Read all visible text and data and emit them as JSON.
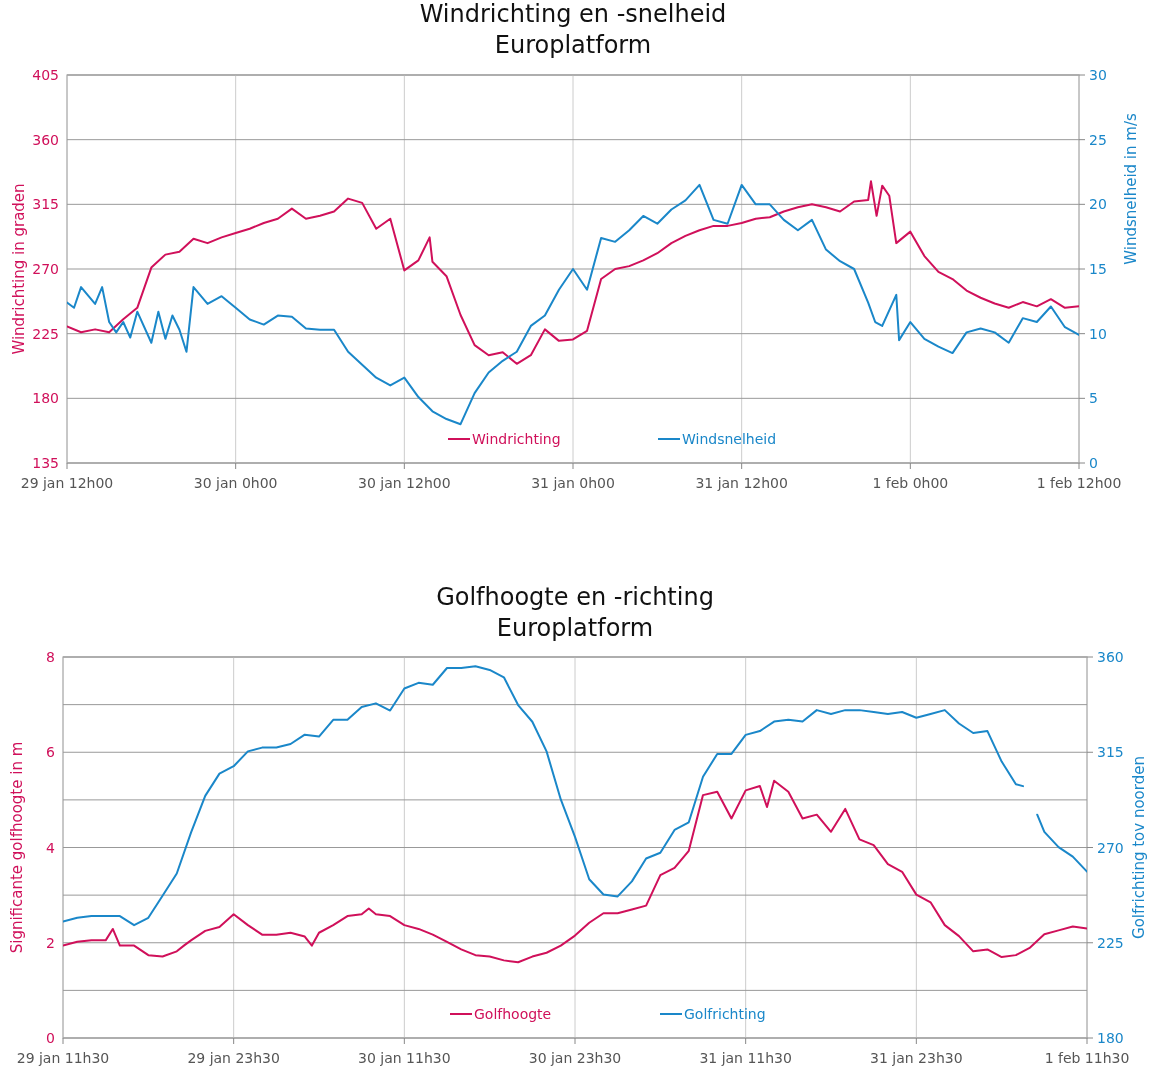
{
  "chart_data": [
    {
      "type": "line",
      "title": "Windrichting en -snelheid",
      "subtitle": "Europlatform",
      "ylabel": "Windrichting in graden",
      "y2label": "Windsnelheid in m/s",
      "xlim": [
        "--01-29T12:00",
        "--02-01T12:00"
      ],
      "xticks": [
        {
          "value": "--01-29T12:00",
          "label": "29 jan 12h00"
        },
        {
          "value": "--01-30T00:00",
          "label": "30 jan 0h00"
        },
        {
          "value": "--01-30T12:00",
          "label": "30 jan 12h00"
        },
        {
          "value": "--01-31T00:00",
          "label": "31 jan 0h00"
        },
        {
          "value": "--01-31T12:00",
          "label": "31 jan 12h00"
        },
        {
          "value": "--02-01T00:00",
          "label": "1 feb 0h00"
        },
        {
          "value": "--02-01T12:00",
          "label": "1 feb 12h00"
        }
      ],
      "ylim": [
        135,
        405
      ],
      "yticks": [
        135,
        180,
        225,
        270,
        315,
        360,
        405
      ],
      "y2lim": [
        0,
        30
      ],
      "y2ticks": [
        0,
        5,
        10,
        15,
        20,
        25,
        30
      ],
      "grid": true,
      "legend": "bottom",
      "line_style": "solid",
      "series": [
        {
          "name": "Windrichting",
          "color": "#d0105a",
          "x": [
            "--01-29T12:00",
            "--01-29T13:00",
            "--01-29T14:00",
            "--01-29T15:00",
            "--01-29T16:00",
            "--01-29T17:00",
            "--01-29T18:00",
            "--01-29T19:00",
            "--01-29T20:00",
            "--01-29T21:00",
            "--01-29T22:00",
            "--01-29T23:00",
            "--01-30T00:00",
            "--01-30T01:00",
            "--01-30T02:00",
            "--01-30T03:00",
            "--01-30T04:00",
            "--01-30T05:00",
            "--01-30T06:00",
            "--01-30T07:00",
            "--01-30T08:00",
            "--01-30T09:00",
            "--01-30T10:00",
            "--01-30T11:00",
            "--01-30T12:00",
            "--01-30T13:00",
            "--01-30T13:48",
            "--01-30T14:00",
            "--01-30T15:00",
            "--01-30T16:00",
            "--01-30T17:00",
            "--01-30T18:00",
            "--01-30T19:00",
            "--01-30T20:00",
            "--01-30T21:00",
            "--01-30T22:00",
            "--01-30T23:00",
            "--01-31T00:00",
            "--01-31T01:00",
            "--01-31T02:00",
            "--01-31T03:00",
            "--01-31T04:00",
            "--01-31T05:00",
            "--01-31T06:00",
            "--01-31T07:00",
            "--01-31T08:00",
            "--01-31T09:00",
            "--01-31T10:00",
            "--01-31T11:00",
            "--01-31T12:00",
            "--01-31T13:00",
            "--01-31T14:00",
            "--01-31T15:00",
            "--01-31T16:00",
            "--01-31T17:00",
            "--01-31T18:00",
            "--01-31T19:00",
            "--01-31T20:00",
            "--01-31T21:00",
            "--01-31T21:12",
            "--01-31T21:36",
            "--01-31T22:00",
            "--01-31T22:30",
            "--01-31T23:00",
            "--02-01T00:00",
            "--02-01T01:00",
            "--02-01T02:00",
            "--02-01T03:00",
            "--02-01T04:00",
            "--02-01T05:00",
            "--02-01T06:00",
            "--02-01T07:00",
            "--02-01T08:00",
            "--02-01T09:00",
            "--02-01T10:00",
            "--02-01T11:00",
            "--02-01T12:00"
          ],
          "values": [
            230,
            226,
            228,
            226,
            235,
            243,
            271,
            280,
            282,
            291,
            288,
            292,
            295,
            298,
            302,
            305,
            312,
            305,
            307,
            310,
            319,
            316,
            298,
            305,
            269,
            276,
            292,
            275,
            265,
            238,
            217,
            210,
            212,
            204,
            210,
            228,
            220,
            221,
            227,
            263,
            270,
            272,
            276,
            281,
            288,
            293,
            297,
            300,
            300,
            302,
            305,
            306,
            310,
            313,
            315,
            313,
            310,
            317,
            318,
            331,
            307,
            328,
            321,
            288,
            296,
            279,
            268,
            263,
            255,
            250,
            246,
            243,
            247,
            244,
            249,
            243,
            244
          ]
        },
        {
          "name": "Windsnelheid",
          "color": "#1a87c9",
          "axis": "y2",
          "x": [
            "--01-29T12:00",
            "--01-29T12:30",
            "--01-29T13:00",
            "--01-29T14:00",
            "--01-29T14:30",
            "--01-29T15:00",
            "--01-29T15:30",
            "--01-29T16:00",
            "--01-29T16:30",
            "--01-29T17:00",
            "--01-29T18:00",
            "--01-29T18:30",
            "--01-29T19:00",
            "--01-29T19:30",
            "--01-29T20:00",
            "--01-29T20:30",
            "--01-29T21:00",
            "--01-29T22:00",
            "--01-29T23:00",
            "--01-30T00:00",
            "--01-30T01:00",
            "--01-30T02:00",
            "--01-30T03:00",
            "--01-30T04:00",
            "--01-30T05:00",
            "--01-30T06:00",
            "--01-30T07:00",
            "--01-30T08:00",
            "--01-30T09:00",
            "--01-30T10:00",
            "--01-30T11:00",
            "--01-30T12:00",
            "--01-30T13:00",
            "--01-30T14:00",
            "--01-30T15:00",
            "--01-30T16:00",
            "--01-30T17:00",
            "--01-30T18:00",
            "--01-30T19:00",
            "--01-30T20:00",
            "--01-30T21:00",
            "--01-30T22:00",
            "--01-30T23:00",
            "--01-31T00:00",
            "--01-31T01:00",
            "--01-31T02:00",
            "--01-31T03:00",
            "--01-31T04:00",
            "--01-31T05:00",
            "--01-31T06:00",
            "--01-31T07:00",
            "--01-31T08:00",
            "--01-31T09:00",
            "--01-31T10:00",
            "--01-31T11:00",
            "--01-31T12:00",
            "--01-31T13:00",
            "--01-31T14:00",
            "--01-31T15:00",
            "--01-31T16:00",
            "--01-31T17:00",
            "--01-31T18:00",
            "--01-31T19:00",
            "--01-31T20:00",
            "--01-31T21:00",
            "--01-31T21:30",
            "--01-31T22:00",
            "--01-31T23:00",
            "--01-31T23:12",
            "--02-01T00:00",
            "--02-01T01:00",
            "--02-01T02:00",
            "--02-01T03:00",
            "--02-01T04:00",
            "--02-01T05:00",
            "--02-01T06:00",
            "--02-01T07:00",
            "--02-01T08:00",
            "--02-01T09:00",
            "--02-01T10:00",
            "--02-01T11:00",
            "--02-01T12:00"
          ],
          "values": [
            12.4,
            12.0,
            13.6,
            12.3,
            13.6,
            10.9,
            10.1,
            10.9,
            9.7,
            11.7,
            9.3,
            11.7,
            9.6,
            11.4,
            10.3,
            8.6,
            13.6,
            12.3,
            12.9,
            12.0,
            11.1,
            10.7,
            11.4,
            11.3,
            10.4,
            10.3,
            10.3,
            8.6,
            7.6,
            6.6,
            6.0,
            6.6,
            5.1,
            4.0,
            3.4,
            3.0,
            5.4,
            7.0,
            7.9,
            8.6,
            10.6,
            11.4,
            13.4,
            15.0,
            13.4,
            17.4,
            17.1,
            18.0,
            19.1,
            18.5,
            19.6,
            20.3,
            21.5,
            18.8,
            18.5,
            21.5,
            20.0,
            20.0,
            18.8,
            18.0,
            18.8,
            16.5,
            15.6,
            15.0,
            12.4,
            10.9,
            10.6,
            13.0,
            9.5,
            10.9,
            9.6,
            9.0,
            8.5,
            10.1,
            10.4,
            10.1,
            9.3,
            11.2,
            10.9,
            12.1,
            10.5,
            9.9
          ]
        }
      ]
    },
    {
      "type": "line",
      "title": "Golfhoogte en -richting",
      "subtitle": "Europlatform",
      "ylabel": "Significante golfhoogte in m",
      "y2label": "Golfrichting tov noorden",
      "xlim": [
        "--01-29T11:30",
        "--02-01T11:30"
      ],
      "xticks": [
        {
          "value": "--01-29T11:30",
          "label": "29 jan 11h30"
        },
        {
          "value": "--01-29T23:30",
          "label": "29 jan 23h30"
        },
        {
          "value": "--01-30T11:30",
          "label": "30 jan 11h30"
        },
        {
          "value": "--01-30T23:30",
          "label": "30 jan 23h30"
        },
        {
          "value": "--01-31T11:30",
          "label": "31 jan 11h30"
        },
        {
          "value": "--01-31T23:30",
          "label": "31 jan 23h30"
        },
        {
          "value": "--02-01T11:30",
          "label": "1 feb 11h30"
        }
      ],
      "ylim": [
        0,
        8
      ],
      "yticks": [
        0,
        {
          "value": 1,
          "label": null
        },
        2,
        {
          "value": 3,
          "label": null
        },
        4,
        {
          "value": 5,
          "label": null
        },
        6,
        {
          "value": 7,
          "label": null
        },
        8
      ],
      "y2lim": [
        180,
        360
      ],
      "y2ticks": [
        180,
        225,
        270,
        315,
        360
      ],
      "grid": true,
      "legend": "bottom",
      "line_style": "solid",
      "series": [
        {
          "name": "Golfhoogte",
          "color": "#d0105a",
          "x": [
            "--01-29T11:30",
            "--01-29T12:30",
            "--01-29T13:30",
            "--01-29T14:30",
            "--01-29T15:00",
            "--01-29T15:30",
            "--01-29T16:30",
            "--01-29T17:30",
            "--01-29T18:30",
            "--01-29T19:30",
            "--01-29T20:00",
            "--01-29T20:30",
            "--01-29T21:30",
            "--01-29T22:30",
            "--01-29T23:30",
            "--01-30T00:30",
            "--01-30T01:30",
            "--01-30T02:30",
            "--01-30T03:30",
            "--01-30T04:30",
            "--01-30T05:00",
            "--01-30T05:30",
            "--01-30T06:30",
            "--01-30T07:30",
            "--01-30T08:30",
            "--01-30T09:00",
            "--01-30T09:30",
            "--01-30T10:30",
            "--01-30T11:30",
            "--01-30T12:30",
            "--01-30T13:30",
            "--01-30T14:30",
            "--01-30T15:30",
            "--01-30T16:30",
            "--01-30T17:30",
            "--01-30T18:30",
            "--01-30T19:30",
            "--01-30T20:30",
            "--01-30T21:30",
            "--01-30T22:30",
            "--01-30T23:30",
            "--01-31T00:30",
            "--01-31T01:30",
            "--01-31T02:30",
            "--01-31T03:30",
            "--01-31T04:30",
            "--01-31T05:30",
            "--01-31T06:30",
            "--01-31T07:30",
            "--01-31T08:30",
            "--01-31T09:30",
            "--01-31T10:30",
            "--01-31T11:30",
            "--01-31T12:30",
            "--01-31T13:00",
            "--01-31T13:30",
            "--01-31T14:30",
            "--01-31T15:30",
            "--01-31T16:30",
            "--01-31T17:30",
            "--01-31T18:30",
            "--01-31T19:30",
            "--01-31T20:30",
            "--01-31T21:30",
            "--01-31T22:30",
            "--01-31T23:30",
            "--02-01T00:30",
            "--02-01T01:30",
            "--02-01T02:30",
            "--02-01T03:30",
            "--02-01T04:30",
            "--02-01T05:30",
            "--02-01T06:30",
            "--02-01T07:30",
            "--02-01T08:30",
            "--02-01T09:30",
            "--02-01T10:30",
            "--02-01T11:30"
          ],
          "values": [
            1.94,
            2.02,
            2.05,
            2.05,
            2.29,
            1.94,
            1.94,
            1.74,
            1.71,
            1.82,
            1.94,
            2.05,
            2.25,
            2.33,
            2.6,
            2.37,
            2.17,
            2.17,
            2.21,
            2.13,
            1.94,
            2.21,
            2.37,
            2.56,
            2.6,
            2.72,
            2.6,
            2.56,
            2.37,
            2.29,
            2.17,
            2.02,
            1.86,
            1.74,
            1.71,
            1.63,
            1.59,
            1.71,
            1.79,
            1.94,
            2.15,
            2.42,
            2.62,
            2.62,
            2.7,
            2.78,
            3.42,
            3.57,
            3.93,
            5.1,
            5.17,
            4.61,
            5.2,
            5.29,
            4.85,
            5.4,
            5.17,
            4.61,
            4.69,
            4.33,
            4.81,
            4.17,
            4.05,
            3.65,
            3.49,
            3.01,
            2.85,
            2.37,
            2.14,
            1.82,
            1.86,
            1.7,
            1.74,
            1.9,
            2.18,
            2.26,
            2.34,
            2.3
          ]
        },
        {
          "name": "Golfrichting",
          "color": "#1a87c9",
          "axis": "y2",
          "x": [
            "--01-29T11:30",
            "--01-29T12:30",
            "--01-29T13:30",
            "--01-29T14:30",
            "--01-29T15:30",
            "--01-29T16:30",
            "--01-29T17:30",
            "--01-29T18:30",
            "--01-29T19:30",
            "--01-29T20:30",
            "--01-29T21:30",
            "--01-29T22:30",
            "--01-29T23:30",
            "--01-30T00:30",
            "--01-30T01:30",
            "--01-30T02:30",
            "--01-30T03:30",
            "--01-30T04:30",
            "--01-30T05:30",
            "--01-30T06:30",
            "--01-30T07:30",
            "--01-30T08:30",
            "--01-30T09:30",
            "--01-30T10:30",
            "--01-30T11:30",
            "--01-30T12:30",
            "--01-30T13:30",
            "--01-30T14:30",
            "--01-30T15:30",
            "--01-30T16:30",
            "--01-30T17:30",
            "--01-30T18:30",
            "--01-30T19:30",
            "--01-30T20:30",
            "--01-30T21:30",
            "--01-30T22:30",
            "--01-30T23:30",
            "--01-31T00:30",
            "--01-31T01:30",
            "--01-31T02:30",
            "--01-31T03:30",
            "--01-31T04:30",
            "--01-31T05:30",
            "--01-31T06:30",
            "--01-31T07:30",
            "--01-31T08:30",
            "--01-31T09:30",
            "--01-31T10:30",
            "--01-31T11:30",
            "--01-31T12:30",
            "--01-31T13:30",
            "--01-31T14:30",
            "--01-31T15:30",
            "--01-31T16:30",
            "--01-31T17:30",
            "--01-31T18:30",
            "--01-31T19:30",
            "--01-31T20:30",
            "--01-31T21:30",
            "--01-31T22:30",
            "--01-31T23:30",
            "--02-01T00:30",
            "--02-01T01:30",
            "--02-01T02:30",
            "--02-01T03:30",
            "--02-01T04:30",
            "--02-01T05:30",
            "--02-01T06:30",
            "--02-01T07:00",
            "--02-01T07:30",
            "--02-01T08:00",
            "--02-01T08:30",
            "--02-01T09:30",
            "--02-01T10:30",
            "--02-01T11:30"
          ],
          "values": [
            235,
            236.8,
            237.6,
            237.6,
            237.6,
            233.3,
            236.8,
            247.2,
            257.7,
            277,
            294.4,
            304.9,
            308.4,
            315.4,
            317.2,
            317.2,
            318.9,
            323.3,
            322.4,
            330.3,
            330.3,
            336.4,
            338.1,
            334.7,
            345.1,
            347.8,
            346.9,
            354.8,
            354.8,
            355.6,
            353.9,
            350.4,
            337.3,
            329.4,
            315.4,
            292.7,
            275,
            255,
            247.8,
            246.9,
            254,
            264.8,
            267.5,
            278.3,
            281.9,
            303.4,
            314.2,
            314.2,
            323.2,
            325,
            329.5,
            330.4,
            329.5,
            334.9,
            333.1,
            334.9,
            334.9,
            334,
            333.1,
            334,
            331.3,
            333.1,
            334.9,
            328.6,
            324.1,
            325,
            310.6,
            299.9,
            299,
            null,
            285.5,
            277.4,
            270.2,
            265.7,
            258.6
          ]
        }
      ]
    }
  ]
}
